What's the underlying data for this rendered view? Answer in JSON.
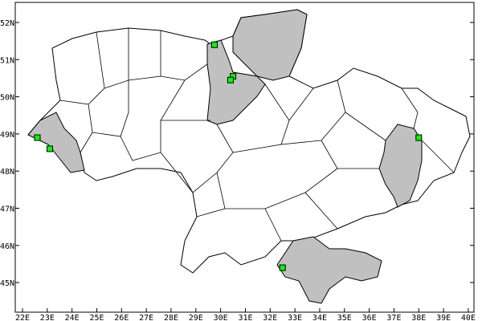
{
  "map": {
    "x_ticks": [
      "22E",
      "23E",
      "24E",
      "25E",
      "26E",
      "27E",
      "28E",
      "29E",
      "30E",
      "31E",
      "32E",
      "33E",
      "34E",
      "35E",
      "36E",
      "37E",
      "38E",
      "39E",
      "40E"
    ],
    "y_ticks": [
      "45N",
      "46N",
      "47N",
      "48N",
      "49N",
      "50N",
      "51N",
      "52N"
    ],
    "lon_range": [
      22,
      40
    ],
    "lat_range": [
      45,
      52
    ],
    "colors": {
      "land": "#ffffff",
      "highlight": "#c0c0c0",
      "marker": "#00ff00",
      "border": "#000000"
    },
    "markers": [
      {
        "lon": 22.6,
        "lat": 48.9
      },
      {
        "lon": 23.1,
        "lat": 48.6
      },
      {
        "lon": 29.75,
        "lat": 51.4
      },
      {
        "lon": 30.5,
        "lat": 50.55
      },
      {
        "lon": 30.4,
        "lat": 50.45
      },
      {
        "lon": 38.0,
        "lat": 48.9
      },
      {
        "lon": 32.5,
        "lat": 45.4
      }
    ]
  }
}
